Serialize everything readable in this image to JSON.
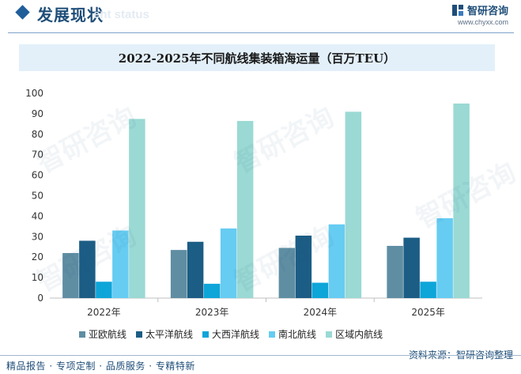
{
  "header": {
    "section_title": "发展现状",
    "section_subtitle": "ent status",
    "brand_name": "智研咨询",
    "brand_url": "www.chyxx.com",
    "watermark": "智研咨询"
  },
  "colors": {
    "series": [
      "#5f8ea3",
      "#1c5d85",
      "#0ea5d9",
      "#66ccf2",
      "#9ad9d4"
    ],
    "title_band": "#e3f0fa",
    "accent": "#1f4e79"
  },
  "chart_data": {
    "type": "bar",
    "title": "2022-2025年不同航线集装箱海运量（百万TEU）",
    "categories": [
      "2022年",
      "2023年",
      "2024年",
      "2025年"
    ],
    "series": [
      {
        "name": "亚欧航线",
        "values": [
          22,
          23.5,
          24.5,
          25.5
        ]
      },
      {
        "name": "太平洋航线",
        "values": [
          28,
          27.5,
          30.5,
          29.5
        ]
      },
      {
        "name": "大西洋航线",
        "values": [
          8,
          7,
          7.5,
          8
        ]
      },
      {
        "name": "南北航线",
        "values": [
          33,
          34,
          36,
          39
        ]
      },
      {
        "name": "区域内航线",
        "values": [
          87.5,
          86.5,
          91,
          95
        ]
      }
    ],
    "ylim": [
      0,
      100
    ],
    "yticks": [
      0,
      10,
      20,
      30,
      40,
      50,
      60,
      70,
      80,
      90,
      100
    ],
    "xlabel": "",
    "ylabel": "",
    "legend_position": "bottom",
    "grid": false
  },
  "footer": {
    "source": "资料来源：智研咨询整理",
    "tagline": "精品报告 · 专项定制 · 品质服务 · 专精特新"
  }
}
